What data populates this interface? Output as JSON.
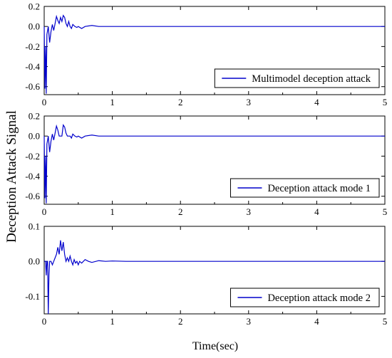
{
  "ylabel": "Deception Attack Signal",
  "xlabel": "Time(sec)",
  "line_color": "#0000cc",
  "chart_data": [
    {
      "type": "line",
      "legend": "Multimodel deception attack",
      "legend_position": "bottom-right",
      "xlim": [
        0,
        5
      ],
      "ylim": [
        -0.68,
        0.2
      ],
      "xticks": [
        "0",
        "1",
        "2",
        "3",
        "4",
        "5"
      ],
      "yticks": [
        "0.2",
        "0.0",
        "-0.2",
        "-0.4",
        "-0.6"
      ],
      "ytick_values": [
        0.2,
        0.0,
        -0.2,
        -0.4,
        -0.6
      ],
      "x": [
        0,
        0.01,
        0.02,
        0.03,
        0.04,
        0.06,
        0.08,
        0.1,
        0.12,
        0.14,
        0.16,
        0.18,
        0.2,
        0.22,
        0.24,
        0.26,
        0.28,
        0.3,
        0.32,
        0.34,
        0.36,
        0.38,
        0.4,
        0.42,
        0.45,
        0.48,
        0.5,
        0.55,
        0.6,
        0.7,
        0.8,
        1.0,
        1.5,
        2,
        3,
        4,
        5
      ],
      "y": [
        0.0,
        -0.62,
        -0.2,
        -0.67,
        -0.08,
        0.0,
        -0.16,
        -0.05,
        0.02,
        -0.04,
        0.03,
        0.1,
        0.06,
        0.03,
        0.09,
        0.05,
        0.11,
        0.09,
        0.03,
        0.0,
        0.05,
        0.0,
        -0.02,
        0.02,
        0.0,
        -0.01,
        0.0,
        -0.02,
        0.0,
        0.01,
        0.0,
        0.0,
        0.0,
        0.0,
        0.0,
        0.0,
        0.0
      ]
    },
    {
      "type": "line",
      "legend": "Deception attack mode 1",
      "legend_position": "bottom-right",
      "xlim": [
        0,
        5
      ],
      "ylim": [
        -0.68,
        0.2
      ],
      "xticks": [
        "0",
        "1",
        "2",
        "3",
        "4",
        "5"
      ],
      "yticks": [
        "0.2",
        "0.0",
        "-0.2",
        "-0.4",
        "-0.6"
      ],
      "ytick_values": [
        0.2,
        0.0,
        -0.2,
        -0.4,
        -0.6
      ],
      "x": [
        0,
        0.01,
        0.02,
        0.03,
        0.04,
        0.06,
        0.08,
        0.1,
        0.12,
        0.14,
        0.16,
        0.18,
        0.2,
        0.22,
        0.24,
        0.26,
        0.28,
        0.3,
        0.32,
        0.34,
        0.36,
        0.38,
        0.4,
        0.42,
        0.45,
        0.48,
        0.5,
        0.55,
        0.6,
        0.7,
        0.8,
        1.0,
        1.5,
        2,
        3,
        4,
        5
      ],
      "y": [
        0.0,
        -0.62,
        -0.2,
        -0.67,
        -0.08,
        0.0,
        -0.16,
        -0.05,
        0.02,
        -0.04,
        0.03,
        0.1,
        0.06,
        0.0,
        0.0,
        0.0,
        0.11,
        0.09,
        0.03,
        0.0,
        0.0,
        0.0,
        -0.02,
        0.02,
        0.0,
        -0.01,
        0.0,
        -0.02,
        0.0,
        0.01,
        0.0,
        0.0,
        0.0,
        0.0,
        0.0,
        0.0,
        0.0
      ]
    },
    {
      "type": "line",
      "legend": "Deception attack mode 2",
      "legend_position": "bottom-right",
      "xlim": [
        0,
        5
      ],
      "ylim": [
        -0.15,
        0.1
      ],
      "xticks": [
        "0",
        "1",
        "2",
        "3",
        "4",
        "5"
      ],
      "yticks": [
        "0.1",
        "0.0",
        "-0.1"
      ],
      "ytick_values": [
        0.1,
        0.0,
        -0.1
      ],
      "x": [
        0,
        0.02,
        0.03,
        0.04,
        0.05,
        0.06,
        0.07,
        0.08,
        0.1,
        0.12,
        0.14,
        0.16,
        0.18,
        0.2,
        0.22,
        0.24,
        0.26,
        0.28,
        0.3,
        0.32,
        0.34,
        0.36,
        0.38,
        0.4,
        0.42,
        0.44,
        0.46,
        0.48,
        0.5,
        0.52,
        0.55,
        0.6,
        0.65,
        0.7,
        0.8,
        0.9,
        1.0,
        1.2,
        1.5,
        2,
        3,
        4,
        5
      ],
      "y": [
        0.0,
        0.0,
        -0.04,
        0.0,
        0.0,
        -0.15,
        -0.04,
        0.0,
        0.0,
        -0.01,
        0.0,
        0.01,
        0.02,
        0.04,
        0.02,
        0.06,
        0.03,
        0.055,
        0.02,
        0.0,
        0.01,
        0.0,
        0.015,
        0.0,
        -0.01,
        0.005,
        -0.005,
        0.0,
        -0.01,
        0.0,
        -0.005,
        0.005,
        0.0,
        -0.003,
        0.002,
        0.0,
        0.001,
        0.0,
        0.0,
        0.0,
        0.0,
        0.0,
        0.0
      ]
    }
  ]
}
